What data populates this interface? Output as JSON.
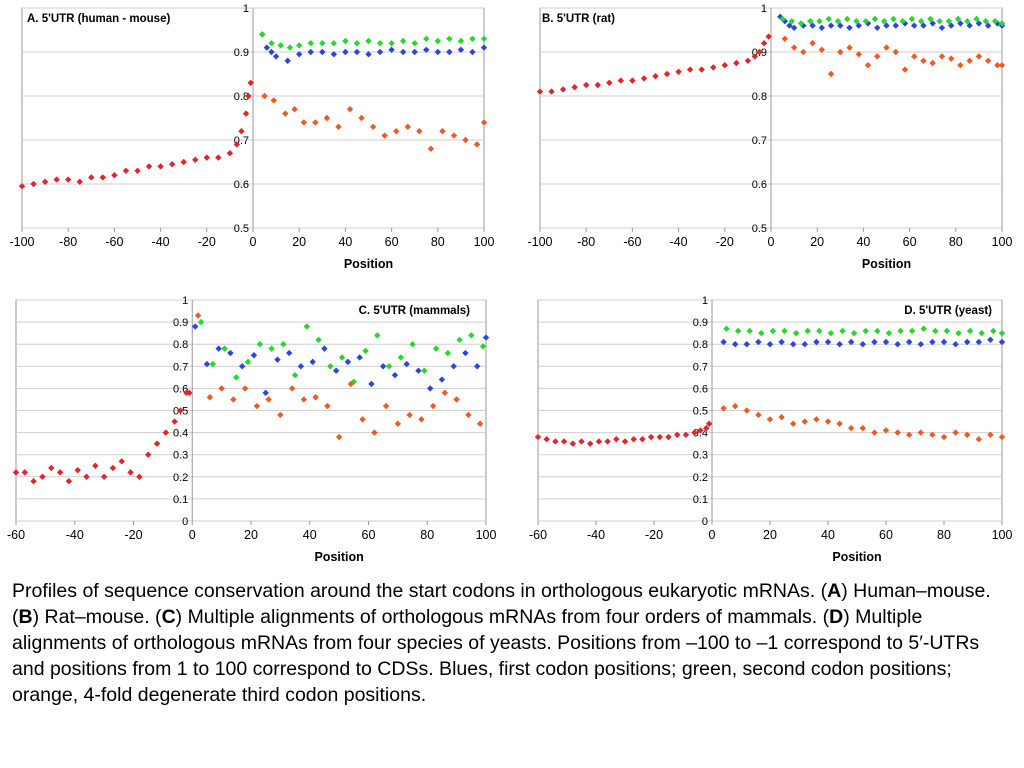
{
  "charts": [
    {
      "title": "A. 5'UTR (human - mouse)",
      "xlabel": "Position",
      "xlim": [
        -100,
        100
      ],
      "ylim": [
        0.5,
        1.0
      ],
      "xticks": [
        -100,
        -80,
        -60,
        -40,
        -20,
        0,
        20,
        40,
        60,
        80,
        100
      ],
      "yticks": [
        0.5,
        0.6,
        0.7,
        0.8,
        0.9,
        1
      ],
      "ytick_labels": [
        "0.5",
        "0.6",
        "0.7",
        "0.8",
        "0.9",
        "1"
      ]
    },
    {
      "title": "B. 5'UTR (rat)",
      "xlabel": "Position",
      "xlim": [
        -100,
        100
      ],
      "ylim": [
        0.5,
        1.0
      ],
      "xticks": [
        -100,
        -80,
        -60,
        -40,
        -20,
        0,
        20,
        40,
        60,
        80,
        100
      ],
      "yticks": [
        0.5,
        0.6,
        0.7,
        0.8,
        0.9,
        1
      ],
      "ytick_labels": [
        "0.5",
        "0.6",
        "0.7",
        "0.8",
        "0.9",
        "1"
      ]
    },
    {
      "title": "C. 5'UTR (mammals)",
      "xlabel": "Position",
      "xlim": [
        -60,
        100
      ],
      "ylim": [
        0,
        1.0
      ],
      "xticks": [
        -60,
        -40,
        -20,
        0,
        20,
        40,
        60,
        80,
        100
      ],
      "yticks": [
        0,
        0.1,
        0.2,
        0.3,
        0.4,
        0.5,
        0.6,
        0.7,
        0.8,
        0.9,
        1
      ],
      "ytick_labels": [
        "0",
        "0.1",
        "0.2",
        "0.3",
        "0.4",
        "0.5",
        "0.6",
        "0.7",
        "0.8",
        "0.9",
        "1"
      ]
    },
    {
      "title": "D. 5'UTR (yeast)",
      "xlabel": "Position",
      "xlim": [
        -60,
        100
      ],
      "ylim": [
        0,
        1.0
      ],
      "xticks": [
        -60,
        -40,
        -20,
        0,
        20,
        40,
        60,
        80,
        100
      ],
      "yticks": [
        0,
        0.1,
        0.2,
        0.3,
        0.4,
        0.5,
        0.6,
        0.7,
        0.8,
        0.9,
        1
      ],
      "ytick_labels": [
        "0",
        "0.1",
        "0.2",
        "0.3",
        "0.4",
        "0.5",
        "0.6",
        "0.7",
        "0.8",
        "0.9",
        "1"
      ]
    }
  ],
  "colors": {
    "utr": "#e8212b",
    "first_codon": "#2a45e6",
    "second_codon": "#23d92a",
    "third_codon": "#f05a22",
    "grid": "#cfcfcf",
    "axis": "#9a9a9a"
  },
  "chart_data": [
    {
      "type": "scatter",
      "title": "A. 5'UTR (human - mouse)",
      "xlabel": "Position",
      "ylabel": "",
      "xlim": [
        -100,
        100
      ],
      "ylim": [
        0.5,
        1.0
      ],
      "series": [
        {
          "color": "#e8212b",
          "x": [
            -100,
            -95,
            -90,
            -85,
            -80,
            -75,
            -70,
            -65,
            -60,
            -55,
            -50,
            -45,
            -40,
            -35,
            -30,
            -25,
            -20,
            -15,
            -10,
            -7,
            -5,
            -3,
            -2,
            -1
          ],
          "y": [
            0.595,
            0.6,
            0.605,
            0.61,
            0.61,
            0.605,
            0.615,
            0.615,
            0.62,
            0.63,
            0.63,
            0.64,
            0.64,
            0.645,
            0.65,
            0.655,
            0.66,
            0.66,
            0.67,
            0.69,
            0.72,
            0.76,
            0.8,
            0.83
          ]
        },
        {
          "color": "#2a45e6",
          "x": [
            4,
            6,
            8,
            10,
            15,
            20,
            25,
            30,
            35,
            40,
            45,
            50,
            55,
            60,
            65,
            70,
            75,
            80,
            85,
            90,
            95,
            100
          ],
          "y": [
            0.94,
            0.91,
            0.9,
            0.89,
            0.88,
            0.895,
            0.9,
            0.9,
            0.895,
            0.9,
            0.9,
            0.895,
            0.9,
            0.905,
            0.9,
            0.9,
            0.905,
            0.9,
            0.9,
            0.905,
            0.9,
            0.91
          ]
        },
        {
          "color": "#23d92a",
          "x": [
            4,
            8,
            12,
            16,
            20,
            25,
            30,
            35,
            40,
            45,
            50,
            55,
            60,
            65,
            70,
            75,
            80,
            85,
            90,
            95,
            100
          ],
          "y": [
            0.94,
            0.92,
            0.915,
            0.91,
            0.915,
            0.92,
            0.92,
            0.92,
            0.925,
            0.92,
            0.925,
            0.92,
            0.92,
            0.925,
            0.92,
            0.93,
            0.925,
            0.93,
            0.925,
            0.93,
            0.93
          ]
        },
        {
          "color": "#f05a22",
          "x": [
            5,
            9,
            14,
            18,
            22,
            27,
            32,
            37,
            42,
            47,
            52,
            57,
            62,
            67,
            72,
            77,
            82,
            87,
            92,
            97,
            100
          ],
          "y": [
            0.8,
            0.79,
            0.76,
            0.77,
            0.74,
            0.74,
            0.75,
            0.73,
            0.77,
            0.75,
            0.73,
            0.71,
            0.72,
            0.73,
            0.72,
            0.68,
            0.72,
            0.71,
            0.7,
            0.69,
            0.74
          ]
        }
      ]
    },
    {
      "type": "scatter",
      "title": "B. 5'UTR (rat)",
      "xlabel": "Position",
      "ylabel": "",
      "xlim": [
        -100,
        100
      ],
      "ylim": [
        0.5,
        1.0
      ],
      "series": [
        {
          "color": "#e8212b",
          "x": [
            -100,
            -95,
            -90,
            -85,
            -80,
            -75,
            -70,
            -65,
            -60,
            -55,
            -50,
            -45,
            -40,
            -35,
            -30,
            -25,
            -20,
            -15,
            -10,
            -7,
            -5,
            -3,
            -1
          ],
          "y": [
            0.81,
            0.81,
            0.815,
            0.82,
            0.825,
            0.825,
            0.83,
            0.835,
            0.835,
            0.84,
            0.845,
            0.85,
            0.855,
            0.86,
            0.86,
            0.865,
            0.87,
            0.875,
            0.88,
            0.89,
            0.9,
            0.92,
            0.935
          ]
        },
        {
          "color": "#2a45e6",
          "x": [
            4,
            6,
            8,
            10,
            14,
            18,
            22,
            26,
            30,
            34,
            38,
            42,
            46,
            50,
            54,
            58,
            62,
            66,
            70,
            74,
            78,
            82,
            86,
            90,
            94,
            98,
            100
          ],
          "y": [
            0.98,
            0.97,
            0.96,
            0.955,
            0.96,
            0.96,
            0.955,
            0.96,
            0.96,
            0.955,
            0.96,
            0.965,
            0.955,
            0.96,
            0.96,
            0.965,
            0.96,
            0.96,
            0.965,
            0.955,
            0.96,
            0.965,
            0.96,
            0.965,
            0.96,
            0.965,
            0.96
          ]
        },
        {
          "color": "#23d92a",
          "x": [
            5,
            9,
            13,
            17,
            21,
            25,
            29,
            33,
            37,
            41,
            45,
            49,
            53,
            57,
            61,
            65,
            69,
            73,
            77,
            81,
            85,
            89,
            93,
            97,
            100
          ],
          "y": [
            0.975,
            0.97,
            0.965,
            0.97,
            0.97,
            0.975,
            0.97,
            0.975,
            0.97,
            0.97,
            0.975,
            0.97,
            0.975,
            0.97,
            0.975,
            0.97,
            0.975,
            0.97,
            0.97,
            0.975,
            0.97,
            0.975,
            0.97,
            0.97,
            0.965
          ]
        },
        {
          "color": "#f05a22",
          "x": [
            6,
            10,
            14,
            18,
            22,
            26,
            30,
            34,
            38,
            42,
            46,
            50,
            54,
            58,
            62,
            66,
            70,
            74,
            78,
            82,
            86,
            90,
            94,
            98,
            100
          ],
          "y": [
            0.93,
            0.91,
            0.9,
            0.92,
            0.905,
            0.85,
            0.9,
            0.91,
            0.895,
            0.87,
            0.89,
            0.91,
            0.9,
            0.86,
            0.89,
            0.88,
            0.875,
            0.89,
            0.885,
            0.87,
            0.88,
            0.89,
            0.88,
            0.87,
            0.87
          ]
        }
      ]
    },
    {
      "type": "scatter",
      "title": "C. 5'UTR (mammals)",
      "xlabel": "Position",
      "ylabel": "",
      "xlim": [
        -60,
        100
      ],
      "ylim": [
        0,
        1.0
      ],
      "series": [
        {
          "color": "#e8212b",
          "x": [
            -60,
            -57,
            -54,
            -51,
            -48,
            -45,
            -42,
            -39,
            -36,
            -33,
            -30,
            -27,
            -24,
            -21,
            -18,
            -15,
            -12,
            -9,
            -6,
            -4,
            -2,
            -1
          ],
          "y": [
            0.22,
            0.22,
            0.18,
            0.2,
            0.24,
            0.22,
            0.18,
            0.23,
            0.2,
            0.25,
            0.2,
            0.24,
            0.27,
            0.22,
            0.2,
            0.3,
            0.35,
            0.4,
            0.45,
            0.5,
            0.58,
            0.58
          ]
        },
        {
          "color": "#2a45e6",
          "x": [
            1,
            5,
            9,
            13,
            17,
            21,
            25,
            29,
            33,
            37,
            41,
            45,
            49,
            53,
            57,
            61,
            65,
            69,
            73,
            77,
            81,
            85,
            89,
            93,
            97,
            100
          ],
          "y": [
            0.88,
            0.71,
            0.78,
            0.76,
            0.7,
            0.75,
            0.58,
            0.73,
            0.76,
            0.7,
            0.72,
            0.78,
            0.68,
            0.72,
            0.74,
            0.62,
            0.7,
            0.66,
            0.71,
            0.68,
            0.6,
            0.64,
            0.7,
            0.76,
            0.7,
            0.83
          ]
        },
        {
          "color": "#23d92a",
          "x": [
            3,
            7,
            11,
            15,
            19,
            23,
            27,
            31,
            35,
            39,
            43,
            47,
            51,
            55,
            59,
            63,
            67,
            71,
            75,
            79,
            83,
            87,
            91,
            95,
            99
          ],
          "y": [
            0.9,
            0.71,
            0.78,
            0.65,
            0.72,
            0.8,
            0.78,
            0.8,
            0.66,
            0.88,
            0.82,
            0.7,
            0.74,
            0.63,
            0.77,
            0.84,
            0.7,
            0.74,
            0.8,
            0.68,
            0.78,
            0.76,
            0.82,
            0.84,
            0.79
          ]
        },
        {
          "color": "#f05a22",
          "x": [
            2,
            6,
            10,
            14,
            18,
            22,
            26,
            30,
            34,
            38,
            42,
            46,
            50,
            54,
            58,
            62,
            66,
            70,
            74,
            78,
            82,
            86,
            90,
            94,
            98
          ],
          "y": [
            0.93,
            0.56,
            0.6,
            0.55,
            0.6,
            0.52,
            0.55,
            0.48,
            0.6,
            0.55,
            0.56,
            0.52,
            0.38,
            0.62,
            0.46,
            0.4,
            0.52,
            0.44,
            0.48,
            0.46,
            0.52,
            0.58,
            0.55,
            0.48,
            0.44
          ]
        }
      ]
    },
    {
      "type": "scatter",
      "title": "D. 5'UTR (yeast)",
      "xlabel": "Position",
      "ylabel": "",
      "xlim": [
        -60,
        100
      ],
      "ylim": [
        0,
        1.0
      ],
      "series": [
        {
          "color": "#e8212b",
          "x": [
            -60,
            -57,
            -54,
            -51,
            -48,
            -45,
            -42,
            -39,
            -36,
            -33,
            -30,
            -27,
            -24,
            -21,
            -18,
            -15,
            -12,
            -9,
            -6,
            -4,
            -2,
            -1
          ],
          "y": [
            0.38,
            0.37,
            0.36,
            0.36,
            0.35,
            0.36,
            0.35,
            0.36,
            0.36,
            0.37,
            0.36,
            0.37,
            0.37,
            0.38,
            0.38,
            0.38,
            0.39,
            0.39,
            0.4,
            0.41,
            0.42,
            0.44
          ]
        },
        {
          "color": "#2a45e6",
          "x": [
            4,
            8,
            12,
            16,
            20,
            24,
            28,
            32,
            36,
            40,
            44,
            48,
            52,
            56,
            60,
            64,
            68,
            72,
            76,
            80,
            84,
            88,
            92,
            96,
            100
          ],
          "y": [
            0.81,
            0.8,
            0.8,
            0.81,
            0.8,
            0.81,
            0.8,
            0.8,
            0.81,
            0.81,
            0.8,
            0.81,
            0.8,
            0.81,
            0.81,
            0.8,
            0.81,
            0.8,
            0.81,
            0.81,
            0.8,
            0.81,
            0.81,
            0.82,
            0.81
          ]
        },
        {
          "color": "#23d92a",
          "x": [
            5,
            9,
            13,
            17,
            21,
            25,
            29,
            33,
            37,
            41,
            45,
            49,
            53,
            57,
            61,
            65,
            69,
            73,
            77,
            81,
            85,
            89,
            93,
            97,
            100
          ],
          "y": [
            0.87,
            0.86,
            0.86,
            0.85,
            0.86,
            0.86,
            0.85,
            0.86,
            0.86,
            0.85,
            0.86,
            0.85,
            0.86,
            0.86,
            0.85,
            0.86,
            0.86,
            0.87,
            0.86,
            0.86,
            0.85,
            0.86,
            0.85,
            0.86,
            0.85
          ]
        },
        {
          "color": "#f05a22",
          "x": [
            4,
            8,
            12,
            16,
            20,
            24,
            28,
            32,
            36,
            40,
            44,
            48,
            52,
            56,
            60,
            64,
            68,
            72,
            76,
            80,
            84,
            88,
            92,
            96,
            100
          ],
          "y": [
            0.51,
            0.52,
            0.5,
            0.48,
            0.46,
            0.47,
            0.44,
            0.45,
            0.46,
            0.45,
            0.44,
            0.42,
            0.42,
            0.4,
            0.41,
            0.4,
            0.39,
            0.4,
            0.39,
            0.38,
            0.4,
            0.39,
            0.37,
            0.39,
            0.38
          ]
        }
      ]
    }
  ],
  "caption": {
    "part1": "Profiles of sequence conservation around the start codons in orthologous eukaryotic mRNAs. (",
    "A": "A",
    "part2": ") Human–mouse. (",
    "B": "B",
    "part3": ") Rat–mouse. (",
    "C": "C",
    "part4": ") Multiple alignments of orthologous mRNAs from four orders of mammals. (",
    "D": "D",
    "part5": ") Multiple alignments of orthologous mRNAs from four species of yeasts. Positions from –100 to –1 correspond to 5′-UTRs and positions from 1 to 100 correspond to CDSs. Blues, first codon positions; green, second codon positions; orange, 4-fold degenerate third codon positions."
  }
}
